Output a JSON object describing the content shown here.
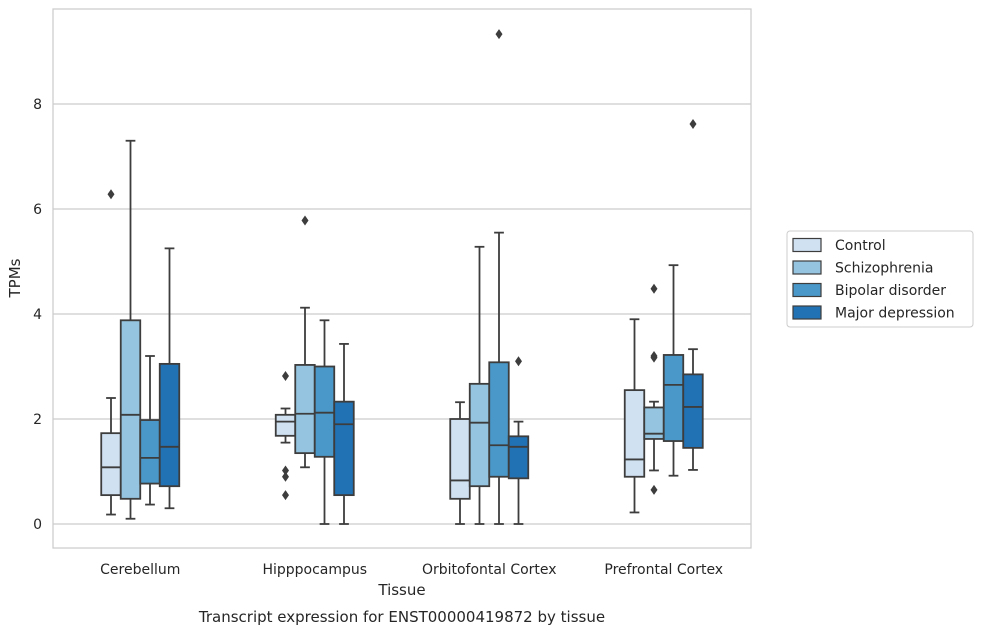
{
  "caption": "Transcript expression for ENST00000419872 by tissue",
  "chart_data": {
    "type": "boxplot",
    "xlabel": "Tissue",
    "ylabel": "TPMs",
    "ylim": [
      -0.45,
      9.8
    ],
    "yticks": [
      0,
      2,
      4,
      6,
      8
    ],
    "grid": "horizontal",
    "legend_position": "right",
    "categories": [
      "Cerebellum",
      "Hipppocampus",
      "Orbitofontal Cortex",
      "Prefrontal Cortex"
    ],
    "series": [
      {
        "name": "Control",
        "color": "#d0e1f2",
        "boxes": [
          {
            "whisker_low": 0.18,
            "q1": 0.55,
            "median": 1.08,
            "q3": 1.73,
            "whisker_high": 2.4,
            "outliers": [
              6.28
            ]
          },
          {
            "whisker_low": 1.55,
            "q1": 1.68,
            "median": 1.95,
            "q3": 2.08,
            "whisker_high": 2.2,
            "outliers": [
              2.82,
              1.02,
              0.9,
              0.55
            ]
          },
          {
            "whisker_low": 0.0,
            "q1": 0.48,
            "median": 0.83,
            "q3": 2.0,
            "whisker_high": 2.32,
            "outliers": []
          },
          {
            "whisker_low": 0.22,
            "q1": 0.9,
            "median": 1.23,
            "q3": 2.55,
            "whisker_high": 3.9,
            "outliers": []
          }
        ]
      },
      {
        "name": "Schizophrenia",
        "color": "#94c4df",
        "boxes": [
          {
            "whisker_low": 0.1,
            "q1": 0.48,
            "median": 2.08,
            "q3": 3.88,
            "whisker_high": 7.3,
            "outliers": []
          },
          {
            "whisker_low": 1.08,
            "q1": 1.35,
            "median": 2.1,
            "q3": 3.03,
            "whisker_high": 4.12,
            "outliers": [
              5.78
            ]
          },
          {
            "whisker_low": 0.0,
            "q1": 0.72,
            "median": 1.93,
            "q3": 2.67,
            "whisker_high": 5.28,
            "outliers": []
          },
          {
            "whisker_low": 1.02,
            "q1": 1.62,
            "median": 1.72,
            "q3": 2.22,
            "whisker_high": 2.33,
            "outliers": [
              4.48,
              3.2,
              3.17,
              0.65
            ]
          }
        ]
      },
      {
        "name": "Bipolar disorder",
        "color": "#4a98c9",
        "boxes": [
          {
            "whisker_low": 0.37,
            "q1": 0.77,
            "median": 1.26,
            "q3": 1.98,
            "whisker_high": 3.2,
            "outliers": []
          },
          {
            "whisker_low": 0.0,
            "q1": 1.28,
            "median": 2.12,
            "q3": 3.0,
            "whisker_high": 3.88,
            "outliers": []
          },
          {
            "whisker_low": 0.0,
            "q1": 0.9,
            "median": 1.5,
            "q3": 3.08,
            "whisker_high": 5.55,
            "outliers": [
              9.33
            ]
          },
          {
            "whisker_low": 0.92,
            "q1": 1.58,
            "median": 2.65,
            "q3": 3.22,
            "whisker_high": 4.93,
            "outliers": []
          }
        ]
      },
      {
        "name": "Major depression",
        "color": "#2171b5",
        "boxes": [
          {
            "whisker_low": 0.3,
            "q1": 0.72,
            "median": 1.47,
            "q3": 3.05,
            "whisker_high": 5.25,
            "outliers": []
          },
          {
            "whisker_low": 0.0,
            "q1": 0.55,
            "median": 1.9,
            "q3": 2.33,
            "whisker_high": 3.43,
            "outliers": []
          },
          {
            "whisker_low": 0.0,
            "q1": 0.87,
            "median": 1.47,
            "q3": 1.67,
            "whisker_high": 1.95,
            "outliers": [
              3.1
            ]
          },
          {
            "whisker_low": 1.03,
            "q1": 1.45,
            "median": 2.23,
            "q3": 2.85,
            "whisker_high": 3.33,
            "outliers": [
              7.62
            ]
          }
        ]
      }
    ]
  }
}
